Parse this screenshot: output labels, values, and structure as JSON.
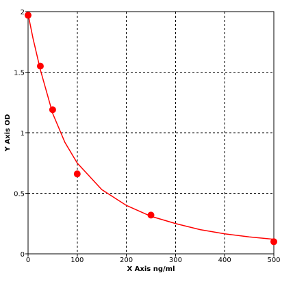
{
  "chart_data": {
    "type": "scatter",
    "title": "",
    "xlabel": "X Axis ng/ml",
    "ylabel": "Y Axis OD",
    "xlim": [
      0,
      500
    ],
    "ylim": [
      0,
      2
    ],
    "x_ticks": [
      0,
      100,
      200,
      300,
      400,
      500
    ],
    "x_tick_labels": [
      "0",
      "100",
      "200",
      "300",
      "400",
      "500"
    ],
    "y_ticks": [
      0,
      0.5,
      1,
      1.5,
      2
    ],
    "y_tick_labels": [
      "0",
      "0.5",
      "1",
      "1.5",
      "2"
    ],
    "grid": true,
    "grid_style": "dashed",
    "legend": "none",
    "colors": {
      "series": "#ff0000",
      "grid": "#000000",
      "axis": "#000000"
    },
    "series": [
      {
        "points": [
          {
            "x": 0,
            "y": 1.97
          },
          {
            "x": 25,
            "y": 1.55
          },
          {
            "x": 50,
            "y": 1.19
          },
          {
            "x": 100,
            "y": 0.66
          },
          {
            "x": 250,
            "y": 0.32
          },
          {
            "x": 500,
            "y": 0.1
          }
        ],
        "fit_curve": [
          {
            "x": 0,
            "y": 1.98
          },
          {
            "x": 10,
            "y": 1.78
          },
          {
            "x": 25,
            "y": 1.52
          },
          {
            "x": 50,
            "y": 1.16
          },
          {
            "x": 75,
            "y": 0.92
          },
          {
            "x": 100,
            "y": 0.75
          },
          {
            "x": 150,
            "y": 0.53
          },
          {
            "x": 200,
            "y": 0.4
          },
          {
            "x": 250,
            "y": 0.31
          },
          {
            "x": 300,
            "y": 0.25
          },
          {
            "x": 350,
            "y": 0.2
          },
          {
            "x": 400,
            "y": 0.165
          },
          {
            "x": 450,
            "y": 0.14
          },
          {
            "x": 500,
            "y": 0.12
          }
        ]
      }
    ]
  }
}
